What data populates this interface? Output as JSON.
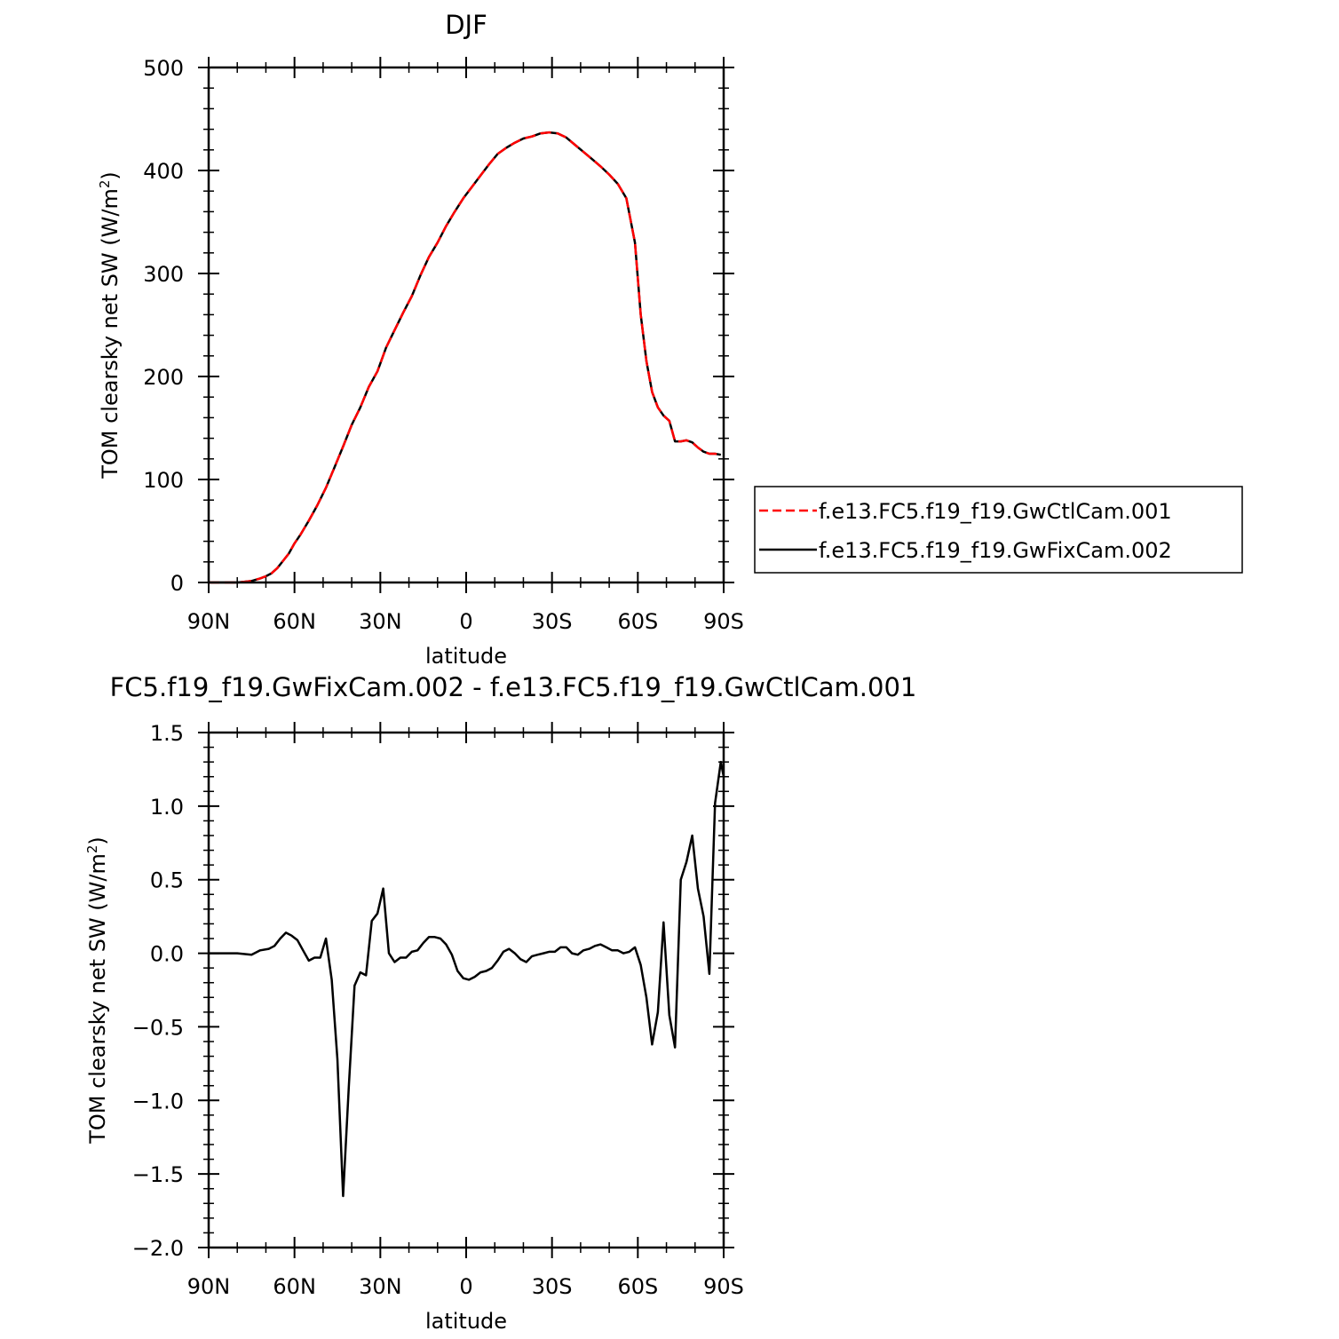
{
  "chart_data": [
    {
      "type": "line",
      "title": "DJF",
      "xlabel": "latitude",
      "ylabel": "TOM clearsky net SW (W/m²)",
      "ylabel_main": "TOM clearsky net SW (W/m",
      "ylabel_sup": "2",
      "ylabel_end": ")",
      "xlim": [
        90,
        -90
      ],
      "ylim": [
        0,
        500
      ],
      "x_ticks": [
        90,
        60,
        30,
        0,
        -30,
        -60,
        -90
      ],
      "x_tick_labels": [
        "90N",
        "60N",
        "30N",
        "0",
        "30S",
        "60S",
        "90S"
      ],
      "y_ticks": [
        0,
        100,
        200,
        300,
        400,
        500
      ],
      "y_tick_labels": [
        "0",
        "100",
        "200",
        "300",
        "400",
        "500"
      ],
      "legend": {
        "placement": "right",
        "entries": [
          "f.e13.FC5.f19_f19.GwCtlCam.001",
          "f.e13.FC5.f19_f19.GwFixCam.002"
        ]
      },
      "series": [
        {
          "name": "f.e13.FC5.f19_f19.GwCtlCam.001",
          "color": "#ff0000",
          "dash": "dashed",
          "x": [
            90,
            84,
            80,
            78,
            75,
            72,
            70,
            68,
            66,
            64,
            62,
            60,
            58,
            55,
            52,
            49,
            46,
            43,
            40,
            37,
            34,
            31,
            28,
            25,
            22,
            19,
            16,
            13,
            10,
            7,
            4,
            1,
            -2,
            -5,
            -8,
            -11,
            -14,
            -17,
            -20,
            -23,
            -26,
            -29,
            -32,
            -35,
            -38,
            -41,
            -44,
            -47,
            -50,
            -53,
            -56,
            -59,
            -61,
            -63,
            -65,
            -67,
            -69,
            -71,
            -73,
            -75,
            -77,
            -79,
            -81,
            -83,
            -85,
            -87,
            -89
          ],
          "values": [
            0,
            0,
            0,
            0.5,
            1.5,
            4,
            6,
            9,
            14,
            21,
            28,
            38,
            46,
            60,
            75,
            92,
            112,
            132,
            153,
            170,
            190,
            205,
            228,
            245,
            262,
            278,
            298,
            316,
            330,
            346,
            360,
            373,
            384,
            395,
            406,
            416,
            422,
            427,
            431,
            433,
            436,
            437,
            436,
            432,
            425,
            418,
            411,
            404,
            396,
            387,
            373,
            330,
            260,
            215,
            185,
            170,
            162,
            157,
            137,
            137,
            138,
            136,
            131,
            127,
            125,
            125,
            124
          ]
        },
        {
          "name": "f.e13.FC5.f19_f19.GwFixCam.002",
          "color": "#000000",
          "dash": "solid",
          "x": [
            90,
            84,
            80,
            78,
            75,
            72,
            70,
            68,
            66,
            64,
            62,
            60,
            58,
            55,
            52,
            49,
            46,
            43,
            40,
            37,
            34,
            31,
            28,
            25,
            22,
            19,
            16,
            13,
            10,
            7,
            4,
            1,
            -2,
            -5,
            -8,
            -11,
            -14,
            -17,
            -20,
            -23,
            -26,
            -29,
            -32,
            -35,
            -38,
            -41,
            -44,
            -47,
            -50,
            -53,
            -56,
            -59,
            -61,
            -63,
            -65,
            -67,
            -69,
            -71,
            -73,
            -75,
            -77,
            -79,
            -81,
            -83,
            -85,
            -87,
            -89
          ],
          "values": [
            0,
            0,
            0,
            0.5,
            1.5,
            4,
            6,
            9,
            14,
            21,
            28,
            38,
            46,
            60,
            75,
            92,
            112,
            132,
            153,
            170,
            190,
            205,
            228,
            245,
            262,
            278,
            298,
            316,
            330,
            346,
            360,
            373,
            384,
            395,
            406,
            416,
            422,
            427,
            431,
            433,
            436,
            437,
            436,
            432,
            425,
            418,
            411,
            404,
            396,
            387,
            373,
            330,
            260,
            215,
            185,
            170,
            162,
            157,
            137,
            137,
            138,
            136,
            131,
            127,
            125,
            125,
            124
          ]
        }
      ]
    },
    {
      "type": "line",
      "title": "FC5.f19_f19.GwFixCam.002 - f.e13.FC5.f19_f19.GwCtlCam.001",
      "xlabel": "latitude",
      "ylabel": "TOM clearsky net SW (W/m²)",
      "ylabel_main": "TOM clearsky net SW (W/m",
      "ylabel_sup": "2",
      "ylabel_end": ")",
      "xlim": [
        90,
        -90
      ],
      "ylim": [
        -2.0,
        1.5
      ],
      "x_ticks": [
        90,
        60,
        30,
        0,
        -30,
        -60,
        -90
      ],
      "x_tick_labels": [
        "90N",
        "60N",
        "30N",
        "0",
        "30S",
        "60S",
        "90S"
      ],
      "y_ticks": [
        -2.0,
        -1.5,
        -1.0,
        -0.5,
        0.0,
        0.5,
        1.0,
        1.5
      ],
      "y_tick_labels": [
        "−2.0",
        "−1.5",
        "−1.0",
        "−0.5",
        "0.0",
        "0.5",
        "1.0",
        "1.5"
      ],
      "series": [
        {
          "color": "#000000",
          "dash": "solid",
          "x": [
            90,
            80,
            75,
            72,
            69,
            67,
            65,
            63,
            61,
            59,
            57,
            55,
            53,
            51,
            49,
            47,
            45,
            43,
            41,
            39,
            37,
            35,
            33,
            31,
            29,
            27,
            25,
            23,
            21,
            19,
            17,
            15,
            13,
            11,
            9,
            7,
            5,
            3,
            1,
            -1,
            -3,
            -5,
            -7,
            -9,
            -11,
            -13,
            -15,
            -17,
            -19,
            -21,
            -23,
            -25,
            -27,
            -29,
            -31,
            -33,
            -35,
            -37,
            -39,
            -41,
            -43,
            -45,
            -47,
            -49,
            -51,
            -53,
            -55,
            -57,
            -59,
            -61,
            -63,
            -65,
            -67,
            -69,
            -71,
            -73,
            -75,
            -77,
            -79,
            -81,
            -83,
            -85,
            -87,
            -89,
            -90
          ],
          "values": [
            0,
            0,
            -0.01,
            0.02,
            0.03,
            0.05,
            0.1,
            0.14,
            0.12,
            0.09,
            0.02,
            -0.05,
            -0.03,
            -0.03,
            0.1,
            -0.18,
            -0.72,
            -1.65,
            -0.9,
            -0.22,
            -0.13,
            -0.15,
            0.22,
            0.27,
            0.44,
            0.0,
            -0.06,
            -0.03,
            -0.03,
            0.01,
            0.02,
            0.07,
            0.11,
            0.11,
            0.1,
            0.06,
            -0.01,
            -0.12,
            -0.17,
            -0.18,
            -0.16,
            -0.13,
            -0.12,
            -0.1,
            -0.05,
            0.01,
            0.03,
            0.0,
            -0.04,
            -0.06,
            -0.02,
            -0.01,
            0.0,
            0.01,
            0.01,
            0.04,
            0.04,
            0.0,
            -0.01,
            0.02,
            0.03,
            0.05,
            0.06,
            0.04,
            0.02,
            0.02,
            0.0,
            0.01,
            0.04,
            -0.08,
            -0.3,
            -0.62,
            -0.4,
            0.21,
            -0.42,
            -0.64,
            0.5,
            0.62,
            0.8,
            0.44,
            0.25,
            -0.14,
            1.02,
            1.3,
            1.2
          ]
        }
      ]
    }
  ]
}
